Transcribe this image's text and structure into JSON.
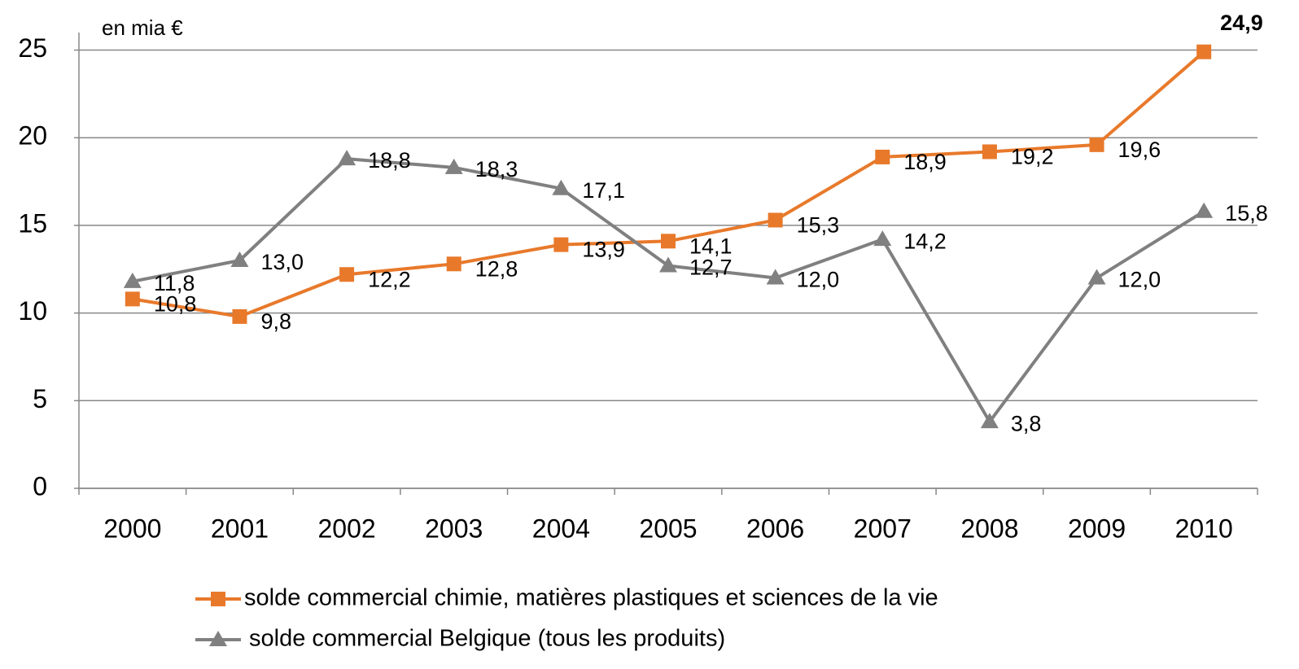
{
  "chart_data": {
    "type": "line",
    "annotation": "en mia €",
    "categories": [
      "2000",
      "2001",
      "2002",
      "2003",
      "2004",
      "2005",
      "2006",
      "2007",
      "2008",
      "2009",
      "2010"
    ],
    "series": [
      {
        "name": "solde commercial chimie, matières plastiques et sciences de la vie",
        "color": "#e8792b",
        "marker": "square",
        "values": [
          10.8,
          9.8,
          12.2,
          12.8,
          13.9,
          14.1,
          15.3,
          18.9,
          19.2,
          19.6,
          24.9
        ],
        "value_labels": [
          "10,8",
          "9,8",
          "12,2",
          "12,8",
          "13,9",
          "14,1",
          "15,3",
          "18,9",
          "19,2",
          "19,6",
          "24,9"
        ]
      },
      {
        "name": "solde commercial Belgique (tous les produits)",
        "color": "#808080",
        "marker": "triangle",
        "values": [
          11.8,
          13.0,
          18.8,
          18.3,
          17.1,
          12.7,
          12.0,
          14.2,
          3.8,
          12.0,
          15.8
        ],
        "value_labels": [
          "11,8",
          "13,0",
          "18,8",
          "18,3",
          "17,1",
          "12,7",
          "12,0",
          "14,2",
          "3,8",
          "12,0",
          "15,8"
        ]
      }
    ],
    "ylim": [
      0,
      26
    ],
    "yticks": [
      0,
      5,
      10,
      15,
      20,
      25
    ],
    "grid": true,
    "legend": "bottom"
  }
}
